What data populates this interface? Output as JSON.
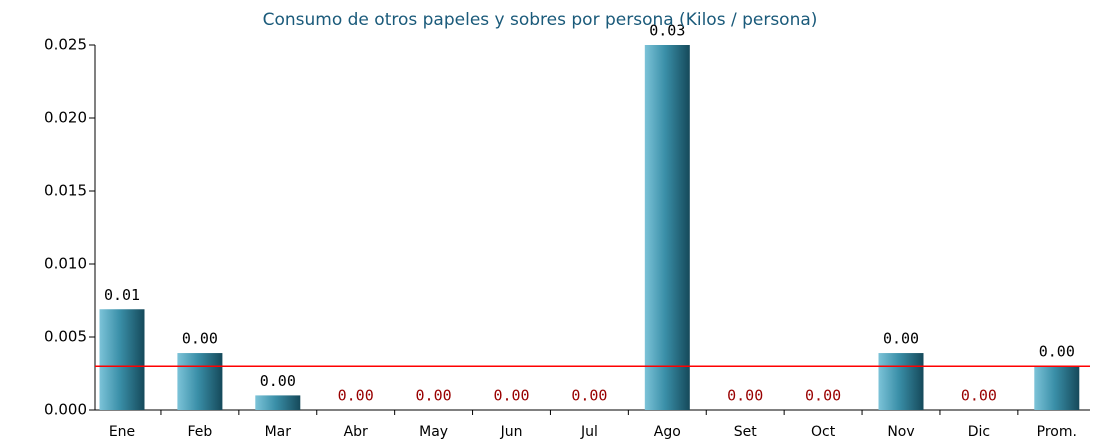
{
  "chart_data": {
    "type": "bar",
    "title": "Consumo de otros papeles y sobres por persona (Kilos / persona)",
    "categories": [
      "Ene",
      "Feb",
      "Mar",
      "Abr",
      "May",
      "Jun",
      "Jul",
      "Ago",
      "Set",
      "Oct",
      "Nov",
      "Dic",
      "Prom."
    ],
    "values": [
      0.0069,
      0.0039,
      0.001,
      0,
      0,
      0,
      0,
      0.025,
      0,
      0,
      0.0039,
      0,
      0.003
    ],
    "value_labels": [
      "0.01",
      "0.00",
      "0.00",
      "0.00",
      "0.00",
      "0.00",
      "0.00",
      "0.03",
      "0.00",
      "0.00",
      "0.00",
      "0.00",
      "0.00"
    ],
    "color": "#3a8fa8",
    "label_color": "#000000",
    "zero_label_color": "#990000",
    "reference_line": {
      "value": 0.003,
      "color": "#ff0000"
    },
    "ylim": [
      0,
      0.025
    ],
    "yticks": [
      {
        "value": 0,
        "label": "0.000"
      },
      0.005,
      {
        "value": 0.01,
        "label": "0.010"
      },
      0.015,
      {
        "value": 0.02,
        "label": "0.020"
      },
      0.025
    ]
  }
}
